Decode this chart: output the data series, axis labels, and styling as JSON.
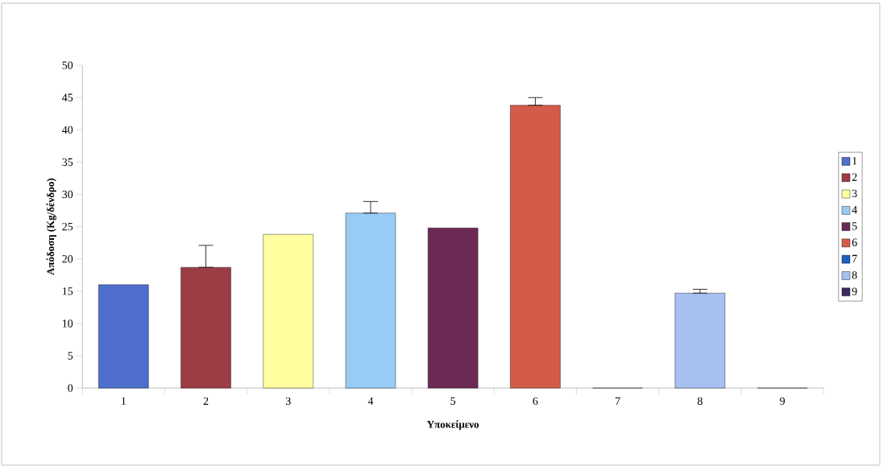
{
  "chart_data": {
    "type": "bar",
    "xlabel": "Υποκείμενο",
    "ylabel": "Απόδοση (Kg/δένδρο)",
    "categories": [
      "1",
      "2",
      "3",
      "4",
      "5",
      "6",
      "7",
      "8",
      "9"
    ],
    "series": [
      {
        "name": "1",
        "color": "#4f6fcf",
        "values": [
          16,
          null,
          null,
          null,
          null,
          null,
          null,
          null,
          null
        ]
      },
      {
        "name": "2",
        "color": "#9c3c44",
        "values": [
          null,
          18.7,
          null,
          null,
          null,
          null,
          null,
          null,
          null
        ],
        "errors": [
          null,
          [
            18.7,
            22.1
          ],
          null,
          null,
          null,
          null,
          null,
          null,
          null
        ]
      },
      {
        "name": "3",
        "color": "#ffffa0",
        "values": [
          null,
          null,
          23.8,
          null,
          null,
          null,
          null,
          null,
          null
        ]
      },
      {
        "name": "4",
        "color": "#99ccf4",
        "values": [
          null,
          null,
          null,
          27.1,
          null,
          null,
          null,
          null,
          null
        ],
        "errors": [
          null,
          null,
          null,
          [
            27.1,
            28.9
          ],
          null,
          null,
          null,
          null,
          null
        ]
      },
      {
        "name": "5",
        "color": "#6b2a55",
        "values": [
          null,
          null,
          null,
          null,
          24.8,
          null,
          null,
          null,
          null
        ]
      },
      {
        "name": "6",
        "color": "#d45b4a",
        "values": [
          null,
          null,
          null,
          null,
          null,
          43.8,
          null,
          null,
          null
        ],
        "errors": [
          null,
          null,
          null,
          null,
          null,
          [
            43.8,
            45.0
          ],
          null,
          null,
          null
        ]
      },
      {
        "name": "7",
        "color": "#1f5fc0",
        "values": [
          null,
          null,
          null,
          null,
          null,
          null,
          0,
          null,
          null
        ]
      },
      {
        "name": "8",
        "color": "#a8c0f0",
        "values": [
          null,
          null,
          null,
          null,
          null,
          null,
          null,
          14.7,
          null
        ],
        "errors": [
          null,
          null,
          null,
          null,
          null,
          null,
          null,
          [
            14.7,
            15.3
          ],
          null
        ]
      },
      {
        "name": "9",
        "color": "#3a2a60",
        "values": [
          null,
          null,
          null,
          null,
          null,
          null,
          null,
          null,
          0
        ]
      }
    ],
    "ylim": [
      0,
      50
    ],
    "yticks": [
      0,
      5,
      10,
      15,
      20,
      25,
      30,
      35,
      40,
      45,
      50
    ],
    "legend": "right"
  }
}
